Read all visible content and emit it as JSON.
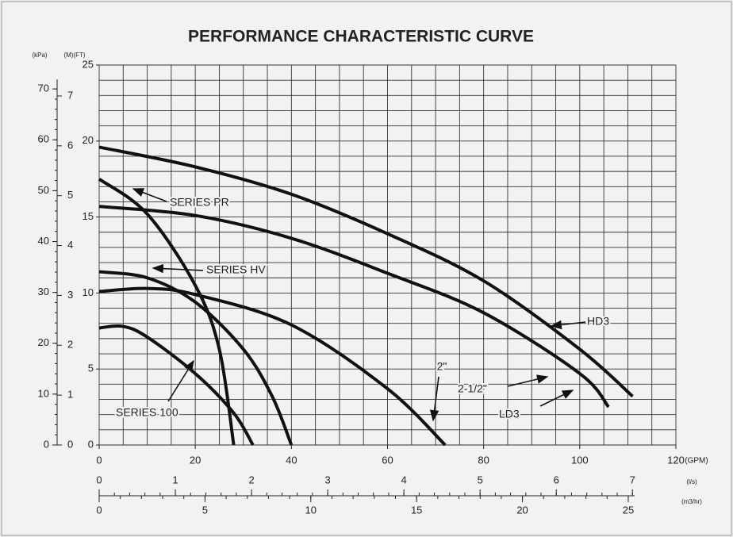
{
  "chart_data": {
    "type": "line",
    "title": "PERFORMANCE CHARACTERISTIC CURVE",
    "x_unit": "(GPM)",
    "y_unit": "(M)(FT)",
    "xlim": [
      0,
      120
    ],
    "xticks": [
      0,
      20,
      40,
      60,
      80,
      100,
      120
    ],
    "ylim": [
      0,
      25
    ],
    "yticks": [
      0,
      5,
      10,
      15,
      20,
      25
    ],
    "grid": true,
    "grid_step_x": 5,
    "grid_step_y": 1,
    "color": "#111111",
    "extra_y_axes": [
      {
        "unit": "(kPa)",
        "lim": [
          0,
          74.7
        ],
        "ticks": [
          0,
          10,
          20,
          30,
          40,
          50,
          60,
          70
        ]
      },
      {
        "lim": [
          0,
          7.62
        ],
        "ticks": [
          0,
          1,
          2,
          3,
          4,
          5,
          6,
          7
        ]
      }
    ],
    "extra_x_axes": [
      {
        "unit": "(l/s)",
        "lim": [
          0,
          7.57
        ],
        "ticks": [
          0,
          1,
          2,
          3,
          4,
          5,
          6,
          7
        ]
      },
      {
        "unit": "(m3/hr)",
        "lim": [
          0,
          27.25
        ],
        "ticks": [
          0,
          5,
          10,
          15,
          20,
          25
        ]
      }
    ],
    "series": [
      {
        "name": "HD3",
        "x": [
          0,
          20,
          40,
          60,
          80,
          100,
          111
        ],
        "values": [
          19.6,
          18.3,
          16.5,
          13.9,
          10.8,
          6.3,
          3.2
        ]
      },
      {
        "name": "LD3",
        "x": [
          0,
          20,
          40,
          60,
          80,
          100,
          106
        ],
        "values": [
          15.7,
          15.1,
          13.6,
          11.3,
          8.7,
          4.7,
          2.5
        ]
      },
      {
        "name": "2\"",
        "x": [
          0,
          10,
          20,
          40,
          60,
          72
        ],
        "values": [
          10.1,
          10.3,
          9.9,
          7.9,
          3.7,
          0
        ]
      },
      {
        "name": "SERIES HV",
        "x": [
          0,
          10,
          20,
          30,
          36,
          40
        ],
        "values": [
          11.4,
          11.0,
          9.4,
          6.3,
          3.2,
          0
        ]
      },
      {
        "name": "SERIES PR",
        "x": [
          0,
          10,
          20,
          25,
          28
        ],
        "values": [
          17.5,
          15.2,
          10.5,
          6.3,
          0
        ]
      },
      {
        "name": "SERIES 100",
        "x": [
          0,
          5,
          10,
          20,
          28,
          32
        ],
        "values": [
          7.7,
          7.8,
          7.1,
          4.7,
          2.1,
          0
        ]
      }
    ],
    "annotations": [
      "2-1/2\""
    ]
  }
}
